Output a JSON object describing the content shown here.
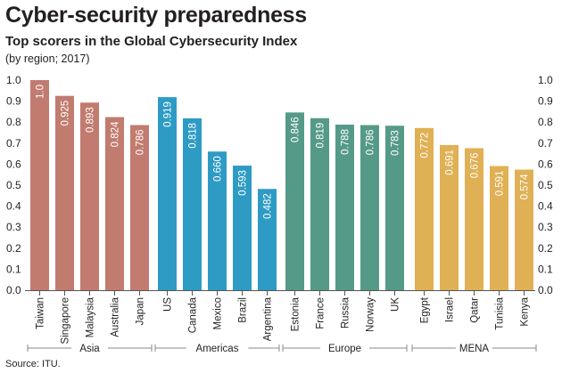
{
  "header": {
    "title": "Cyber-security preparedness",
    "subtitle": "Top scorers in the Global Cybersecurity Index",
    "note": "(by region; 2017)"
  },
  "footer": {
    "source": "Source: ITU."
  },
  "chart_data": {
    "type": "bar",
    "title": "Top scorers in the Global Cybersecurity Index",
    "xlabel": "",
    "ylabel": "",
    "ylim": [
      0,
      1.0
    ],
    "yticks": [
      "0.0",
      "0.1",
      "0.2",
      "0.3",
      "0.4",
      "0.5",
      "0.6",
      "0.7",
      "0.8",
      "0.9",
      "1.0"
    ],
    "grid": false,
    "groups": [
      {
        "name": "Asia",
        "color": "#c27b6f",
        "categories": [
          "Taiwan",
          "Singapore",
          "Malaysia",
          "Australia",
          "Japan"
        ],
        "values": [
          1.0,
          0.925,
          0.893,
          0.824,
          0.786
        ],
        "labels": [
          "1.0",
          "0.925",
          "0.893",
          "0.824",
          "0.786"
        ]
      },
      {
        "name": "Americas",
        "color": "#2d9bc4",
        "categories": [
          "US",
          "Canada",
          "Mexico",
          "Brazil",
          "Argentina"
        ],
        "values": [
          0.919,
          0.818,
          0.66,
          0.593,
          0.482
        ],
        "labels": [
          "0.919",
          "0.818",
          "0.660",
          "0.593",
          "0.482"
        ]
      },
      {
        "name": "Europe",
        "color": "#559a88",
        "categories": [
          "Estonia",
          "France",
          "Russia",
          "Norway",
          "UK"
        ],
        "values": [
          0.846,
          0.819,
          0.788,
          0.786,
          0.783
        ],
        "labels": [
          "0.846",
          "0.819",
          "0.788",
          "0.786",
          "0.783"
        ]
      },
      {
        "name": "MENA",
        "color": "#e0b054",
        "categories": [
          "Egypt",
          "Israel",
          "Qatar",
          "Tunisia",
          "Kenya"
        ],
        "values": [
          0.772,
          0.691,
          0.676,
          0.591,
          0.574
        ],
        "labels": [
          "0.772",
          "0.691",
          "0.676",
          "0.591",
          "0.574"
        ]
      }
    ]
  }
}
